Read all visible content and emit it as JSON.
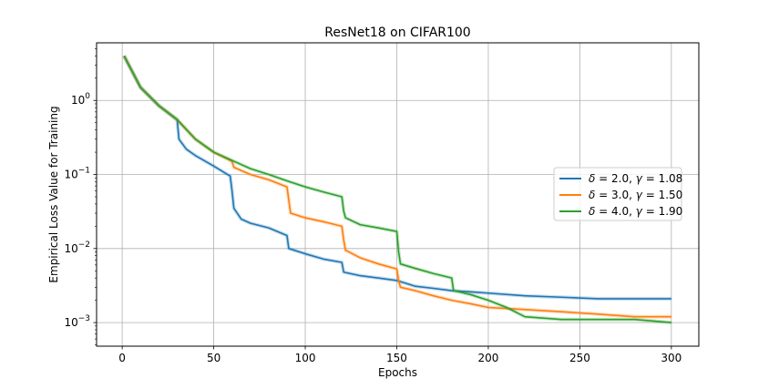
{
  "chart_data": {
    "type": "line",
    "title": "ResNet18 on CIFAR100",
    "xlabel": "Epochs",
    "ylabel": "Empirical Loss Value for Training",
    "yscale": "log",
    "xlim": [
      -14,
      315
    ],
    "ylim": [
      0.00048,
      6.0
    ],
    "grid": true,
    "legend_position": "center-right",
    "xticks": [
      {
        "value": 0,
        "label": "0"
      },
      {
        "value": 50,
        "label": "50"
      },
      {
        "value": 100,
        "label": "100"
      },
      {
        "value": 150,
        "label": "150"
      },
      {
        "value": 200,
        "label": "200"
      },
      {
        "value": 250,
        "label": "250"
      },
      {
        "value": 300,
        "label": "300"
      }
    ],
    "yticks": [
      {
        "value": 0.001,
        "base": "10",
        "exp": "−3"
      },
      {
        "value": 0.01,
        "base": "10",
        "exp": "−2"
      },
      {
        "value": 0.1,
        "base": "10",
        "exp": "−1"
      },
      {
        "value": 1,
        "base": "10",
        "exp": "0"
      }
    ],
    "series": [
      {
        "name": "δ = 2.0, γ = 1.08",
        "legend": {
          "delta_label": "δ",
          "delta_value": "2.0",
          "gamma_label": "γ",
          "gamma_value": "1.08"
        },
        "color": "#1f77b4",
        "x": [
          1,
          10,
          20,
          30,
          31,
          35,
          40,
          50,
          59,
          60,
          61,
          65,
          70,
          80,
          90,
          91,
          100,
          110,
          120,
          121,
          130,
          140,
          150,
          160,
          170,
          180,
          190,
          200,
          220,
          240,
          260,
          280,
          300
        ],
        "y": [
          4.0,
          1.5,
          0.85,
          0.55,
          0.3,
          0.22,
          0.18,
          0.13,
          0.095,
          0.06,
          0.035,
          0.025,
          0.022,
          0.019,
          0.015,
          0.01,
          0.0085,
          0.0072,
          0.0065,
          0.0048,
          0.0043,
          0.004,
          0.0037,
          0.0031,
          0.0029,
          0.0027,
          0.0026,
          0.0025,
          0.0023,
          0.0022,
          0.0021,
          0.0021,
          0.0021
        ]
      },
      {
        "name": "δ = 3.0, γ = 1.50",
        "legend": {
          "delta_label": "δ",
          "delta_value": "3.0",
          "gamma_label": "γ",
          "gamma_value": "1.50"
        },
        "color": "#ff7f0e",
        "x": [
          1,
          10,
          20,
          30,
          40,
          50,
          59,
          60,
          61,
          70,
          80,
          90,
          91,
          92,
          100,
          110,
          120,
          121,
          122,
          130,
          140,
          150,
          151,
          152,
          160,
          170,
          180,
          190,
          200,
          220,
          240,
          260,
          280,
          300
        ],
        "y": [
          4.0,
          1.5,
          0.85,
          0.55,
          0.3,
          0.2,
          0.155,
          0.15,
          0.125,
          0.1,
          0.085,
          0.068,
          0.045,
          0.03,
          0.026,
          0.023,
          0.02,
          0.013,
          0.0095,
          0.0075,
          0.0062,
          0.0053,
          0.0037,
          0.003,
          0.0027,
          0.0023,
          0.002,
          0.0018,
          0.0016,
          0.0015,
          0.0014,
          0.0013,
          0.0012,
          0.0012
        ]
      },
      {
        "name": "δ = 4.0, γ = 1.90",
        "legend": {
          "delta_label": "δ",
          "delta_value": "4.0",
          "gamma_label": "γ",
          "gamma_value": "1.90"
        },
        "color": "#2ca02c",
        "x": [
          1,
          10,
          20,
          30,
          40,
          50,
          60,
          70,
          80,
          90,
          100,
          110,
          120,
          121,
          122,
          130,
          140,
          150,
          151,
          152,
          160,
          170,
          180,
          181,
          190,
          200,
          210,
          220,
          240,
          260,
          280,
          300
        ],
        "y": [
          4.0,
          1.5,
          0.85,
          0.55,
          0.3,
          0.2,
          0.155,
          0.12,
          0.1,
          0.082,
          0.068,
          0.058,
          0.05,
          0.032,
          0.026,
          0.021,
          0.019,
          0.017,
          0.009,
          0.0062,
          0.0054,
          0.0046,
          0.004,
          0.0027,
          0.0024,
          0.002,
          0.0016,
          0.0012,
          0.0011,
          0.0011,
          0.0011,
          0.001
        ]
      }
    ]
  }
}
